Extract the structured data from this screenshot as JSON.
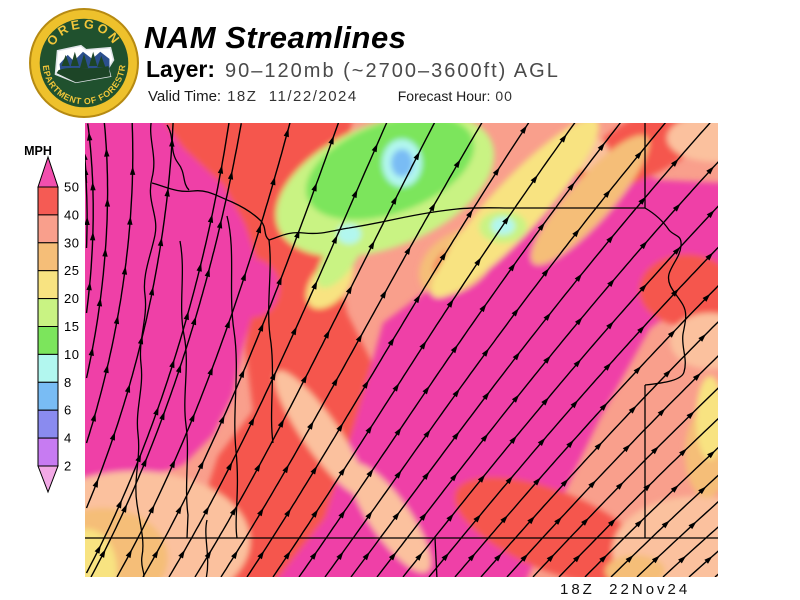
{
  "header": {
    "title": "NAM Streamlines",
    "layer_label": "Layer:",
    "layer_value": "90–120mb (~2700–3600ft) AGL",
    "valid_time_label": "Valid Time:",
    "valid_time_value": "18Z  11/22/2024",
    "forecast_hour_label": "Forecast Hour:",
    "forecast_hour_value": "00",
    "logo": {
      "arc_top": "OREGON",
      "arc_bottom": "DEPARTMENT OF FORESTRY"
    }
  },
  "legend": {
    "title": "MPH",
    "ticks": [
      "50",
      "40",
      "30",
      "25",
      "20",
      "15",
      "10",
      "8",
      "6",
      "4",
      "2"
    ],
    "colors": {
      "above_max": "#f24fae",
      "segments": [
        "#f55b54",
        "#f99f8c",
        "#f5be78",
        "#f8e381",
        "#c9f383",
        "#7ce55c",
        "#b2f7ef",
        "#79bcf4",
        "#8a8bef",
        "#c77bf2"
      ],
      "below_min": "#f2a9e6"
    }
  },
  "map": {
    "stamp": "18Z  22Nov24"
  }
}
